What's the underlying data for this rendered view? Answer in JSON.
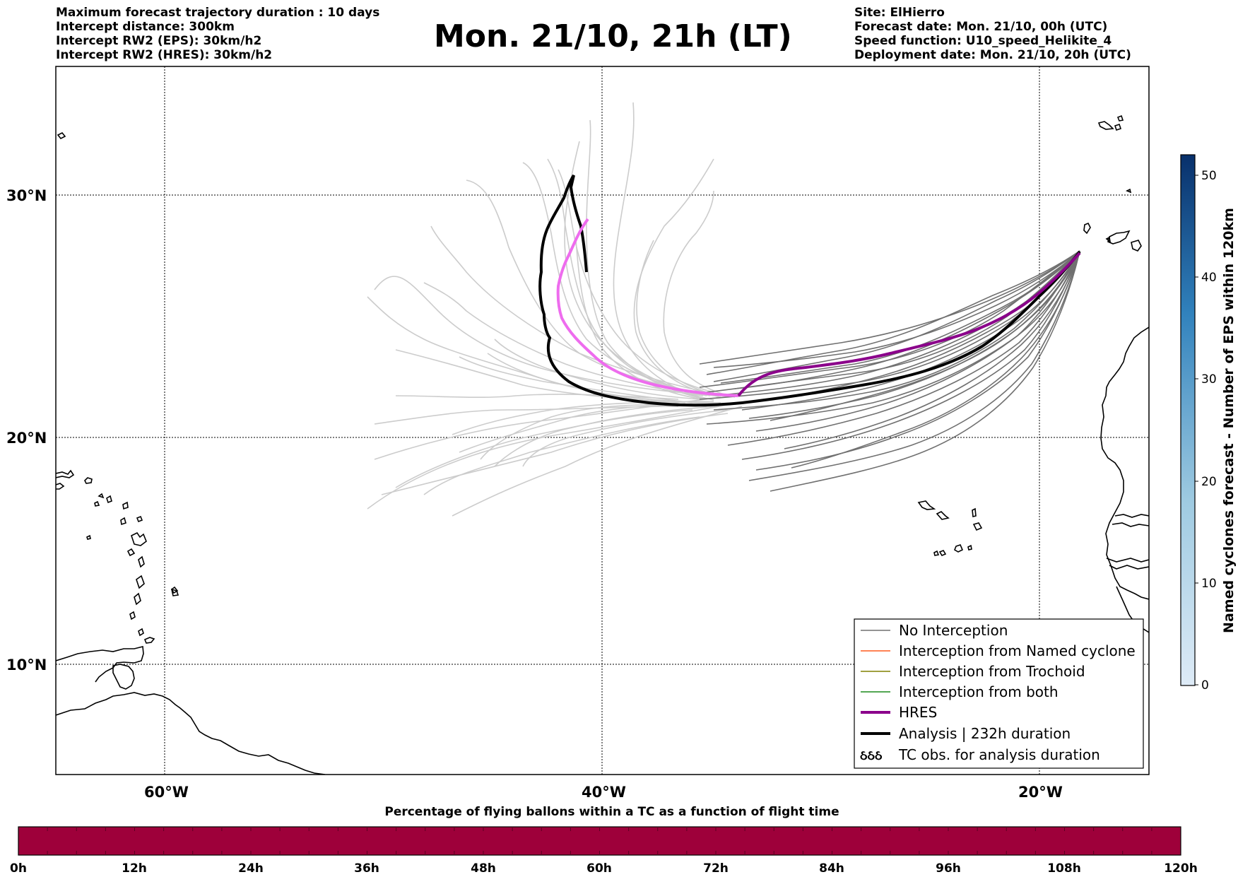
{
  "header": {
    "left_lines": [
      "Maximum forecast trajectory duration : 10 days",
      "Intercept distance: 300km",
      "Intercept RW2 (EPS):  30km/h2",
      "Intercept RW2 (HRES): 30km/h2"
    ],
    "title": "Mon. 21/10, 21h (LT)",
    "right_lines": [
      "Site: ElHierro",
      "Forecast date: Mon. 21/10, 00h (UTC)",
      "Speed function: U10_speed_Helikite_4",
      "Deployment date: Mon. 21/10, 20h (UTC)"
    ]
  },
  "map": {
    "lat_labels": [
      "30°N",
      "20°N",
      "10°N"
    ],
    "lon_labels": [
      "60°W",
      "40°W",
      "20°W"
    ],
    "colors": {
      "eps_no_interception": "#707070",
      "eps_light": "#cccccc",
      "hres": "#8b008b",
      "hres_light": "#ee6cee",
      "analysis": "#000000",
      "named_cyclone": "#ff5a1e",
      "trochoid": "#808000",
      "both": "#1a8a1a"
    }
  },
  "legend": {
    "items": [
      {
        "label": "No Interception",
        "color": "#707070",
        "style": "thin"
      },
      {
        "label": "Interception from Named cyclone",
        "color": "#ff5a1e",
        "style": "thin"
      },
      {
        "label": "Interception from Trochoid",
        "color": "#808000",
        "style": "thin"
      },
      {
        "label": "Interception from both",
        "color": "#1a8a1a",
        "style": "thin"
      },
      {
        "label": "HRES",
        "color": "#8b008b",
        "style": "thick"
      },
      {
        "label": "Analysis | 232h duration",
        "color": "#000000",
        "style": "thick"
      },
      {
        "label": "TC obs. for analysis duration",
        "color": "#000000",
        "style": "symbol",
        "symbol": "ઠઠઠ"
      }
    ]
  },
  "colorbar_vertical": {
    "label": "Named cyclones forecast - Number of EPS within 120km",
    "ticks": [
      "0",
      "10",
      "20",
      "30",
      "40",
      "50"
    ],
    "color_start": "#deebf7",
    "color_end": "#08306b"
  },
  "colorbar_horizontal": {
    "title": "Percentage of flying ballons within a TC as a function of flight time",
    "ticks": [
      "0h",
      "12h",
      "24h",
      "36h",
      "48h",
      "60h",
      "72h",
      "84h",
      "96h",
      "108h",
      "120h"
    ],
    "fill_color": "#9e003a"
  }
}
